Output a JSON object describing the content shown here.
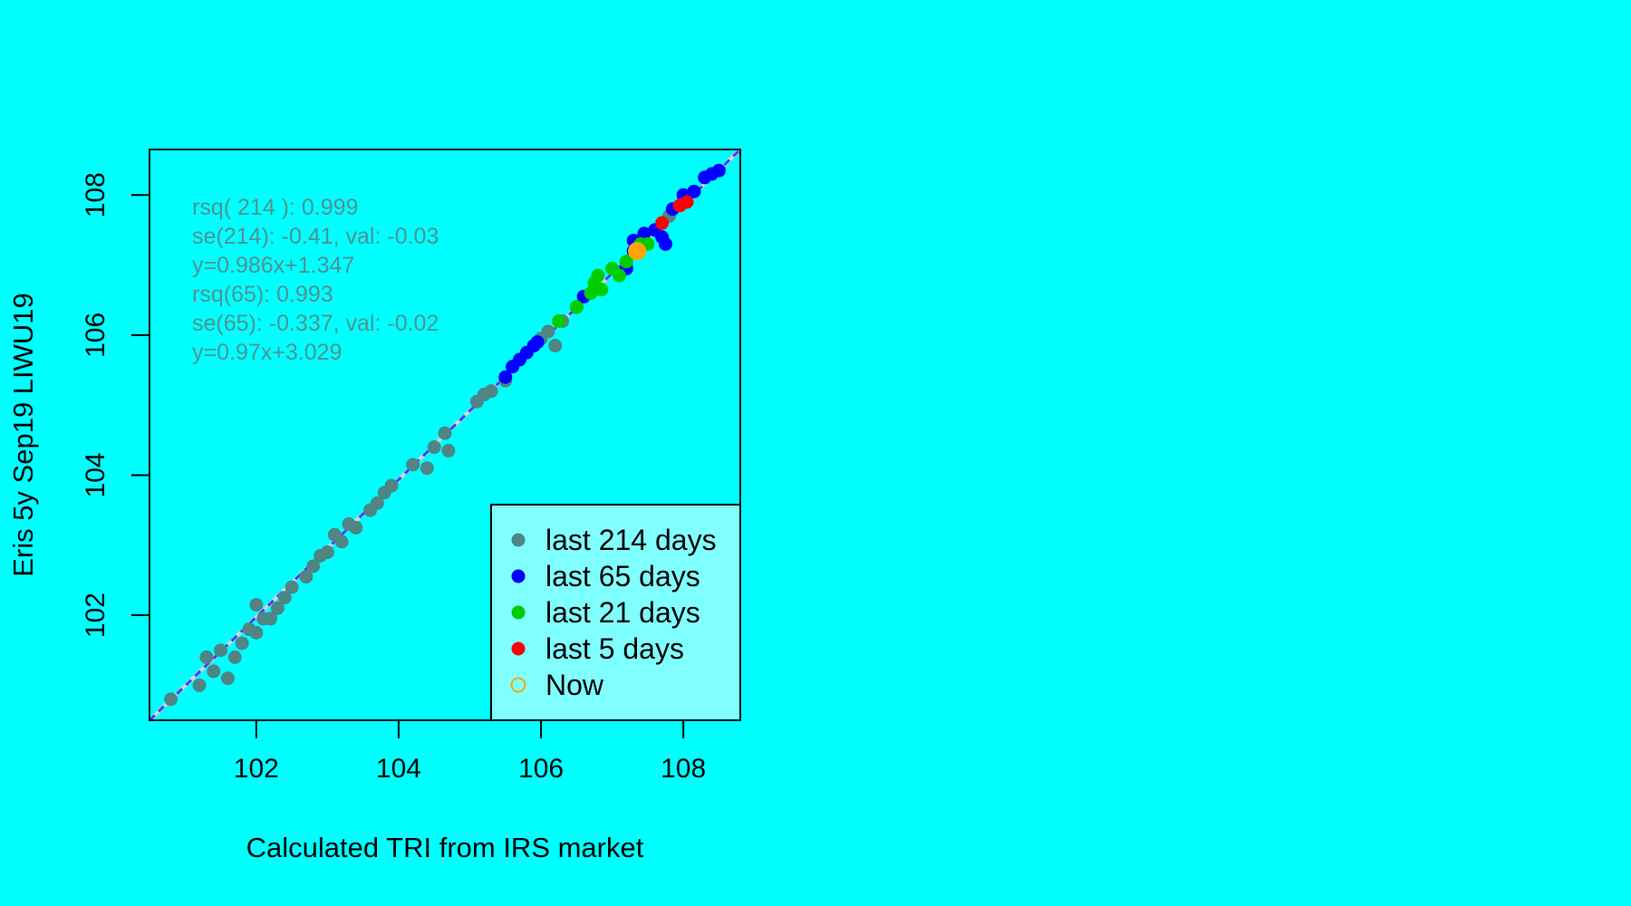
{
  "chart_data": {
    "type": "scatter",
    "xlabel": "Calculated TRI from IRS market",
    "ylabel": "Eris 5y Sep19 LIWU19",
    "xlim": [
      100.5,
      108.8
    ],
    "ylim": [
      100.5,
      108.65
    ],
    "xticks": [
      "102",
      "104",
      "106",
      "108"
    ],
    "yticks": [
      "102",
      "104",
      "106",
      "108"
    ],
    "annotations": [
      "rsq( 214 ):  0.999",
      "se(214): -0.41, val: -0.03",
      "y=0.986x+1.347",
      "rsq(65): 0.993",
      "se(65): -0.337, val: -0.02",
      "y=0.97x+3.029"
    ],
    "annotation_color": "#4F9393",
    "legend": {
      "position": "bottom-right",
      "background": "#80FFFF",
      "entries": [
        {
          "label": "last 214 days",
          "color": "#4F8585",
          "marker": "filled-circle"
        },
        {
          "label": "last 65 days",
          "color": "#0000FF",
          "marker": "filled-circle"
        },
        {
          "label": "last 21 days",
          "color": "#00CC00",
          "marker": "filled-circle"
        },
        {
          "label": "last 5 days",
          "color": "#FF0000",
          "marker": "filled-circle"
        },
        {
          "label": "Now",
          "color": "#FFA500",
          "marker": "open-circle"
        }
      ]
    },
    "lines": [
      {
        "style": "solid",
        "color": "#D3D3D3",
        "x": [
          100.5,
          108.8
        ],
        "y": [
          100.5,
          108.65
        ]
      },
      {
        "style": "dashed",
        "color": "#4040FF",
        "x": [
          100.5,
          108.8
        ],
        "y": [
          100.5,
          108.65
        ]
      }
    ],
    "series": [
      {
        "name": "last 214 days",
        "color": "#4F8585",
        "points": [
          [
            100.8,
            100.8
          ],
          [
            101.2,
            101.0
          ],
          [
            101.3,
            101.4
          ],
          [
            101.4,
            101.2
          ],
          [
            101.5,
            101.5
          ],
          [
            101.6,
            101.1
          ],
          [
            101.7,
            101.4
          ],
          [
            101.8,
            101.6
          ],
          [
            101.9,
            101.8
          ],
          [
            102.0,
            101.75
          ],
          [
            102.0,
            102.15
          ],
          [
            102.1,
            101.95
          ],
          [
            102.2,
            101.95
          ],
          [
            102.3,
            102.1
          ],
          [
            102.4,
            102.25
          ],
          [
            102.5,
            102.4
          ],
          [
            102.7,
            102.55
          ],
          [
            102.8,
            102.7
          ],
          [
            102.9,
            102.85
          ],
          [
            103.0,
            102.9
          ],
          [
            103.1,
            103.15
          ],
          [
            103.2,
            103.05
          ],
          [
            103.3,
            103.3
          ],
          [
            103.4,
            103.25
          ],
          [
            103.6,
            103.5
          ],
          [
            103.7,
            103.6
          ],
          [
            103.8,
            103.75
          ],
          [
            103.9,
            103.85
          ],
          [
            104.2,
            104.15
          ],
          [
            104.4,
            104.1
          ],
          [
            104.5,
            104.4
          ],
          [
            104.65,
            104.6
          ],
          [
            104.7,
            104.35
          ],
          [
            105.1,
            105.05
          ],
          [
            105.2,
            105.15
          ],
          [
            105.3,
            105.2
          ],
          [
            105.5,
            105.35
          ],
          [
            105.6,
            105.55
          ],
          [
            106.0,
            105.95
          ],
          [
            106.1,
            106.05
          ],
          [
            106.2,
            105.85
          ],
          [
            106.3,
            106.2
          ],
          [
            106.6,
            106.55
          ],
          [
            107.2,
            107.0
          ],
          [
            107.8,
            107.7
          ]
        ]
      },
      {
        "name": "last 65 days",
        "color": "#0000FF",
        "points": [
          [
            105.5,
            105.4
          ],
          [
            105.6,
            105.55
          ],
          [
            105.7,
            105.65
          ],
          [
            105.8,
            105.75
          ],
          [
            105.9,
            105.85
          ],
          [
            105.95,
            105.9
          ],
          [
            106.5,
            106.4
          ],
          [
            106.6,
            106.55
          ],
          [
            107.2,
            106.95
          ],
          [
            107.3,
            107.2
          ],
          [
            107.3,
            107.35
          ],
          [
            107.45,
            107.45
          ],
          [
            107.6,
            107.5
          ],
          [
            107.7,
            107.4
          ],
          [
            107.75,
            107.3
          ],
          [
            107.85,
            107.8
          ],
          [
            108.0,
            108.0
          ],
          [
            108.15,
            108.05
          ],
          [
            108.3,
            108.25
          ],
          [
            108.4,
            108.3
          ],
          [
            108.5,
            108.35
          ]
        ]
      },
      {
        "name": "last 21 days",
        "color": "#00CC00",
        "points": [
          [
            106.25,
            106.2
          ],
          [
            106.5,
            106.4
          ],
          [
            106.7,
            106.6
          ],
          [
            106.75,
            106.75
          ],
          [
            106.8,
            106.85
          ],
          [
            106.85,
            106.65
          ],
          [
            107.0,
            106.95
          ],
          [
            107.1,
            106.85
          ],
          [
            107.2,
            107.05
          ],
          [
            107.4,
            107.3
          ],
          [
            107.5,
            107.3
          ]
        ]
      },
      {
        "name": "last 5 days",
        "color": "#FF0000",
        "points": [
          [
            107.7,
            107.6
          ],
          [
            107.95,
            107.85
          ],
          [
            108.05,
            107.9
          ]
        ]
      },
      {
        "name": "Now",
        "color": "#FFA500",
        "points": [
          [
            107.35,
            107.2
          ]
        ]
      }
    ]
  }
}
